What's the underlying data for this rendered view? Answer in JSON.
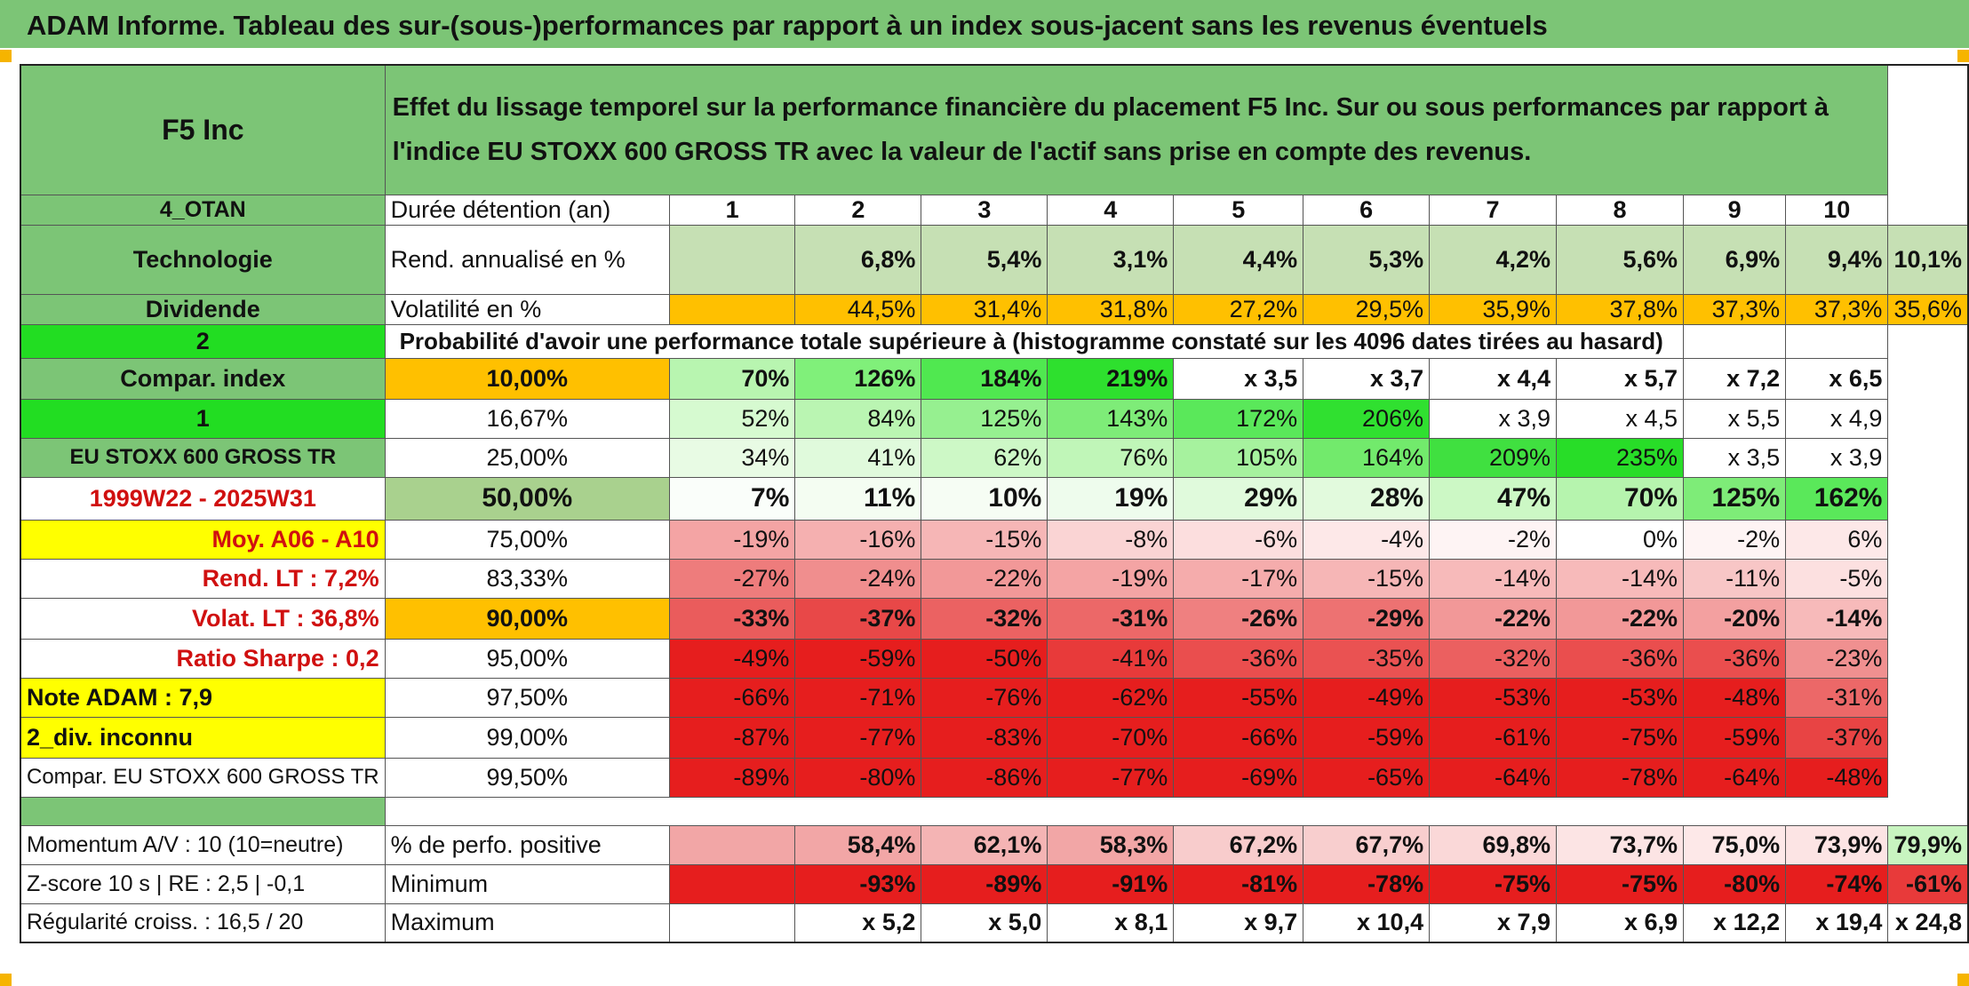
{
  "page_title": "ADAM Informe. Tableau des sur-(sous-)performances par rapport à un index sous-jacent sans les revenus éventuels",
  "colors": {
    "green_label": "#7cc576",
    "bright_green": "#22dd22",
    "orange": "#ffc000",
    "yellow": "#ffff00",
    "red_text": "#d01010",
    "rend_bg": "#c6e0b4"
  },
  "header": {
    "company": "F5 Inc",
    "description": "Effet du lissage temporel sur la performance financière du placement F5 Inc. Sur ou sous performances par rapport à l'indice EU STOXX 600 GROSS TR avec la valeur de l'actif sans prise en compte des revenus."
  },
  "durations_label": "Durée détention (an)",
  "durations": [
    "1",
    "2",
    "3",
    "4",
    "5",
    "6",
    "7",
    "8",
    "9",
    "10"
  ],
  "side": {
    "otan": "4_OTAN",
    "sector": "Technologie",
    "dividend": "Dividende",
    "div_code": "2",
    "compar_index": "Compar. index",
    "compar_code": "1",
    "index_name": "EU STOXX 600 GROSS TR",
    "period": "1999W22 - 2025W31",
    "moy": "Moy. A06 - A10",
    "rend_lt": "Rend. LT :   7,2%",
    "volat_lt": "Volat. LT :   36,8%",
    "sharpe": "Ratio Sharpe :    0,2",
    "note": "Note ADAM : 7,9",
    "div_inconnu": "2_div. inconnu",
    "compar_full": "Compar. EU STOXX 600 GROSS TR",
    "momentum": "Momentum A/V : 10 (10=neutre)",
    "zscore": "Z-score 10 s | RE : 2,5 | -0,1",
    "regularite": "Régularité croiss. : 16,5 / 20"
  },
  "rend": {
    "label": "Rend. annualisé en %",
    "values": [
      "6,8%",
      "5,4%",
      "3,1%",
      "4,4%",
      "5,3%",
      "4,2%",
      "5,6%",
      "6,9%",
      "9,4%",
      "10,1%"
    ]
  },
  "volat": {
    "label": "Volatilité en %",
    "values": [
      "44,5%",
      "31,4%",
      "31,8%",
      "27,2%",
      "29,5%",
      "35,9%",
      "37,8%",
      "37,3%",
      "37,3%",
      "35,6%"
    ]
  },
  "prob_title": "Probabilité d'avoir une performance totale supérieure à (histogramme constaté sur les 4096 dates tirées au hasard)",
  "prob_rows": [
    {
      "level": "10,00%",
      "bold": true,
      "values": [
        "70%",
        "126%",
        "184%",
        "219%",
        "x 3,5",
        "x 3,7",
        "x 4,4",
        "x 5,7",
        "x 7,2",
        "x 6,5"
      ],
      "bg": [
        "#b8f5b0",
        "#80f07a",
        "#50e850",
        "#2ee02e",
        "#fff",
        "#fff",
        "#fff",
        "#fff",
        "#fff",
        "#fff"
      ]
    },
    {
      "level": "16,67%",
      "bold": false,
      "values": [
        "52%",
        "84%",
        "125%",
        "143%",
        "172%",
        "206%",
        "x 3,9",
        "x 4,5",
        "x 5,5",
        "x 4,9"
      ],
      "bg": [
        "#d6fad0",
        "#baf5b2",
        "#96f090",
        "#7eec78",
        "#5ae85a",
        "#30e030",
        "#fff",
        "#fff",
        "#fff",
        "#fff"
      ]
    },
    {
      "level": "25,00%",
      "bold": false,
      "values": [
        "34%",
        "41%",
        "62%",
        "76%",
        "105%",
        "164%",
        "209%",
        "235%",
        "x 3,5",
        "x 3,9"
      ],
      "bg": [
        "#e8fbe4",
        "#e0fadc",
        "#cdf8c6",
        "#c0f6b8",
        "#a6f29e",
        "#72ea6c",
        "#40e040",
        "#28dd28",
        "#fff",
        "#fff"
      ]
    },
    {
      "level": "50,00%",
      "bold": true,
      "big": true,
      "values": [
        "7%",
        "11%",
        "10%",
        "19%",
        "29%",
        "28%",
        "47%",
        "70%",
        "125%",
        "162%"
      ],
      "bg": [
        "#fafefa",
        "#f4fdf2",
        "#f6fdf4",
        "#eefced",
        "#e0fadc",
        "#e2fadd",
        "#ccf8c5",
        "#b6f4ae",
        "#7eec78",
        "#5ae85a"
      ]
    },
    {
      "level": "75,00%",
      "bold": false,
      "values": [
        "-19%",
        "-16%",
        "-15%",
        "-8%",
        "-6%",
        "-4%",
        "-2%",
        "0%",
        "-2%",
        "6%"
      ],
      "bg": [
        "#f4a4a4",
        "#f5b0b0",
        "#f6b6b6",
        "#fad4d4",
        "#fcdede",
        "#fde8e8",
        "#fef4f4",
        "#ffffff",
        "#fef4f4",
        "#fde8e8"
      ]
    },
    {
      "level": "83,33%",
      "bold": false,
      "values": [
        "-27%",
        "-24%",
        "-22%",
        "-19%",
        "-17%",
        "-15%",
        "-14%",
        "-14%",
        "-11%",
        "-5%"
      ],
      "bg": [
        "#ee7c7c",
        "#f08e8e",
        "#f29898",
        "#f4a4a4",
        "#f5acac",
        "#f6b6b6",
        "#f7baba",
        "#f7baba",
        "#f8c6c6",
        "#fce0e0"
      ]
    },
    {
      "level": "90,00%",
      "bold": true,
      "values": [
        "-33%",
        "-37%",
        "-32%",
        "-31%",
        "-26%",
        "-29%",
        "-22%",
        "-22%",
        "-20%",
        "-14%"
      ],
      "bg": [
        "#ea5c5c",
        "#e84848",
        "#eb6262",
        "#ec6868",
        "#ef8080",
        "#ed7272",
        "#f29898",
        "#f29898",
        "#f3a0a0",
        "#f7baba"
      ]
    },
    {
      "level": "95,00%",
      "bold": false,
      "values": [
        "-49%",
        "-59%",
        "-50%",
        "-41%",
        "-36%",
        "-35%",
        "-32%",
        "-36%",
        "-36%",
        "-23%"
      ],
      "bg": [
        "#e61e1e",
        "#e61e1e",
        "#e61e1e",
        "#e83a3a",
        "#ea4e4e",
        "#ea5252",
        "#eb6060",
        "#ea4e4e",
        "#ea4e4e",
        "#f09090"
      ]
    },
    {
      "level": "97,50%",
      "bold": false,
      "values": [
        "-66%",
        "-71%",
        "-76%",
        "-62%",
        "-55%",
        "-49%",
        "-53%",
        "-53%",
        "-48%",
        "-31%"
      ],
      "bg": [
        "#e61e1e",
        "#e61e1e",
        "#e61e1e",
        "#e61e1e",
        "#e61e1e",
        "#e61e1e",
        "#e61e1e",
        "#e61e1e",
        "#e61e1e",
        "#ec6868"
      ]
    },
    {
      "level": "99,00%",
      "bold": false,
      "values": [
        "-87%",
        "-77%",
        "-83%",
        "-70%",
        "-66%",
        "-59%",
        "-61%",
        "-75%",
        "-59%",
        "-37%"
      ],
      "bg": [
        "#e61e1e",
        "#e61e1e",
        "#e61e1e",
        "#e61e1e",
        "#e61e1e",
        "#e61e1e",
        "#e61e1e",
        "#e61e1e",
        "#e61e1e",
        "#e84444"
      ]
    },
    {
      "level": "99,50%",
      "bold": false,
      "values": [
        "-89%",
        "-80%",
        "-86%",
        "-77%",
        "-69%",
        "-65%",
        "-64%",
        "-78%",
        "-64%",
        "-48%"
      ],
      "bg": [
        "#e61e1e",
        "#e61e1e",
        "#e61e1e",
        "#e61e1e",
        "#e61e1e",
        "#e61e1e",
        "#e61e1e",
        "#e61e1e",
        "#e61e1e",
        "#e61e1e"
      ]
    }
  ],
  "positive": {
    "label": "% de perfo. positive",
    "values": [
      "58,4%",
      "62,1%",
      "58,3%",
      "67,2%",
      "67,7%",
      "69,8%",
      "73,7%",
      "75,0%",
      "73,9%",
      "79,9%"
    ],
    "bg": [
      "#f2a6a6",
      "#f4b4b4",
      "#f2a6a6",
      "#f8cccc",
      "#f8cece",
      "#fad8d8",
      "#fce4e4",
      "#fde8e8",
      "#fce4e4",
      "#c8f4c0"
    ]
  },
  "minimum": {
    "label": "Minimum",
    "values": [
      "-93%",
      "-89%",
      "-91%",
      "-81%",
      "-78%",
      "-75%",
      "-75%",
      "-80%",
      "-74%",
      "-61%"
    ]
  },
  "maximum": {
    "label": "Maximum",
    "values": [
      "x 5,2",
      "x 5,0",
      "x 8,1",
      "x 9,7",
      "x 10,4",
      "x 7,9",
      "x 6,9",
      "x 12,2",
      "x 19,4",
      "x 24,8"
    ]
  }
}
